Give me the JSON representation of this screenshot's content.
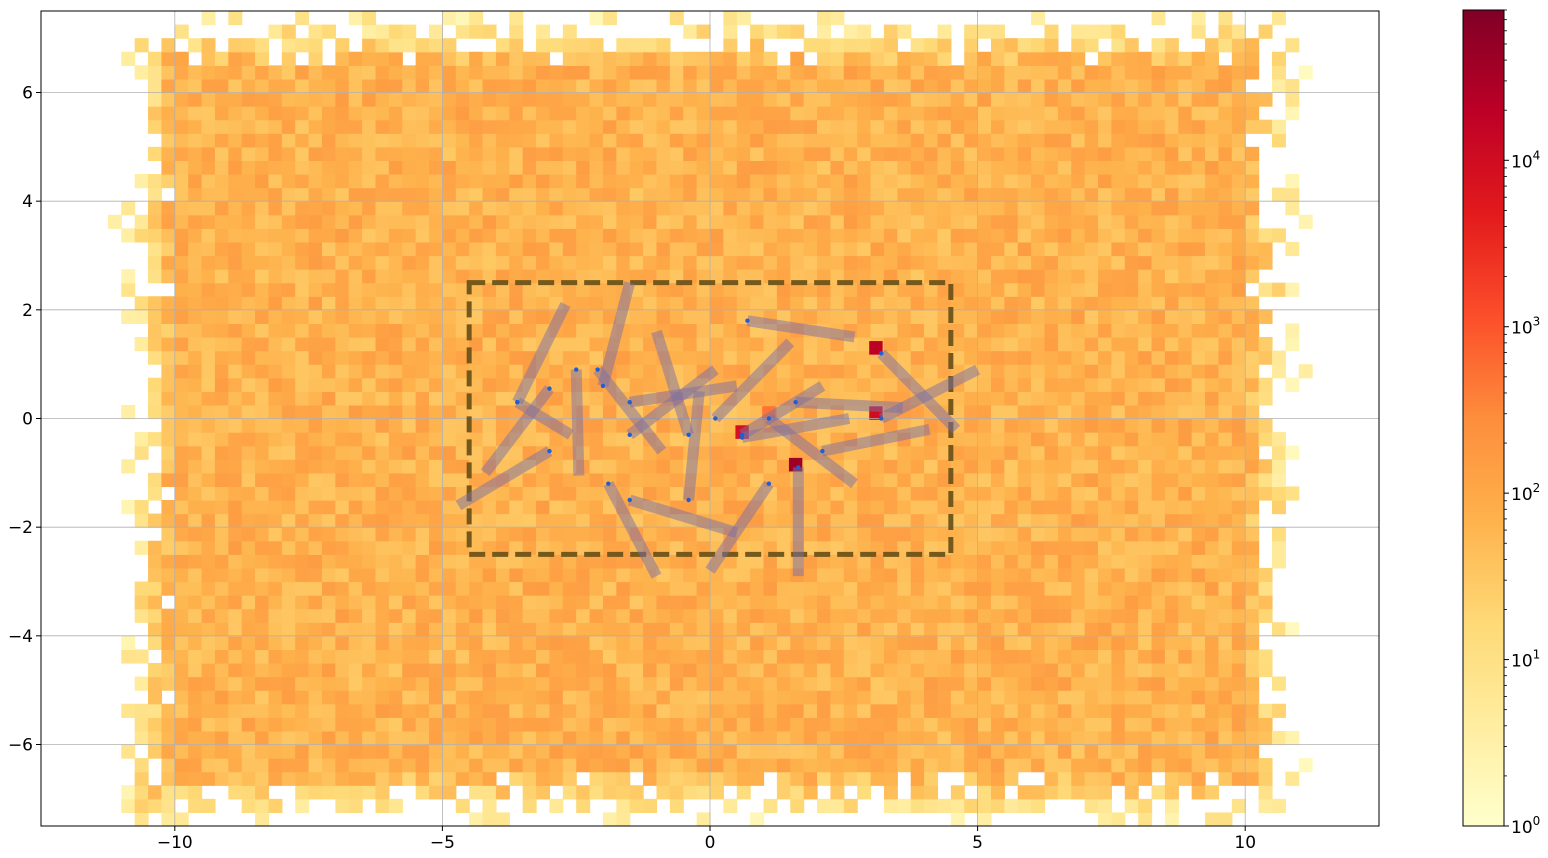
{
  "chart_data": {
    "type": "heatmap",
    "title": "",
    "xlabel": "",
    "ylabel": "",
    "xlim": [
      -12.5,
      12.5
    ],
    "ylim": [
      -7.5,
      7.5
    ],
    "grid": true,
    "x_ticks": [
      {
        "value": -10,
        "label": "−10"
      },
      {
        "value": -5,
        "label": "−5"
      },
      {
        "value": 0,
        "label": "0"
      },
      {
        "value": 5,
        "label": "5"
      },
      {
        "value": 10,
        "label": "10"
      }
    ],
    "y_ticks": [
      {
        "value": 6,
        "label": "6"
      },
      {
        "value": 4,
        "label": "4"
      },
      {
        "value": 2,
        "label": "2"
      },
      {
        "value": 0,
        "label": "0"
      },
      {
        "value": -2,
        "label": "−2"
      },
      {
        "value": -4,
        "label": "−4"
      },
      {
        "value": -6,
        "label": "−6"
      }
    ],
    "colorbar": {
      "scale": "log",
      "colormap": "YlOrRd",
      "range": [
        1,
        80000
      ],
      "colors": [
        "#ffffcc",
        "#ffeda0",
        "#fed976",
        "#feb24c",
        "#fd8d3c",
        "#fc4e2a",
        "#e31a1c",
        "#bd0026",
        "#800026"
      ],
      "ticks": [
        {
          "value": 1,
          "base": "10",
          "exp": "0"
        },
        {
          "value": 10,
          "base": "10",
          "exp": "1"
        },
        {
          "value": 100,
          "base": "10",
          "exp": "2"
        },
        {
          "value": 1000,
          "base": "10",
          "exp": "3"
        },
        {
          "value": 10000,
          "base": "10",
          "exp": "4"
        }
      ]
    },
    "heatmap": {
      "bin_size": 0.25,
      "core_region": {
        "x": [
          -10,
          10
        ],
        "y": [
          -6.5,
          6.5
        ]
      },
      "typical_count": 70,
      "hot_cells": [
        {
          "x": 3.1,
          "y": 1.3,
          "count": 20000
        },
        {
          "x": 3.1,
          "y": 0.1,
          "count": 10000
        },
        {
          "x": 1.1,
          "y": 0.1,
          "count": 500
        },
        {
          "x": 0.6,
          "y": -0.25,
          "count": 8000
        },
        {
          "x": 1.6,
          "y": -0.85,
          "count": 40000
        }
      ]
    },
    "region_box": {
      "x": [
        -4.5,
        4.5
      ],
      "y": [
        -2.5,
        2.5
      ],
      "color": "#6e5318",
      "style": "dashed"
    },
    "segments": [
      {
        "x1": -3.6,
        "y1": 0.3,
        "x2": -2.6,
        "y2": -0.3
      },
      {
        "x1": -3.0,
        "y1": 0.55,
        "x2": -4.2,
        "y2": -1.0
      },
      {
        "x1": -3.0,
        "y1": -0.6,
        "x2": -4.7,
        "y2": -1.6
      },
      {
        "x1": -3.6,
        "y1": 0.3,
        "x2": -2.7,
        "y2": 2.1
      },
      {
        "x1": -2.5,
        "y1": 0.9,
        "x2": -2.45,
        "y2": -1.05
      },
      {
        "x1": -2.0,
        "y1": 0.6,
        "x2": -1.5,
        "y2": 2.5
      },
      {
        "x1": -2.1,
        "y1": 0.9,
        "x2": -0.9,
        "y2": -0.6
      },
      {
        "x1": -1.5,
        "y1": 0.3,
        "x2": 0.5,
        "y2": 0.6
      },
      {
        "x1": -1.5,
        "y1": -0.3,
        "x2": 0.1,
        "y2": 0.9
      },
      {
        "x1": -0.4,
        "y1": -0.3,
        "x2": -1.0,
        "y2": 1.6
      },
      {
        "x1": -0.4,
        "y1": -1.5,
        "x2": -0.2,
        "y2": 0.5
      },
      {
        "x1": 0.1,
        "y1": 0.0,
        "x2": 1.5,
        "y2": 1.4
      },
      {
        "x1": 0.7,
        "y1": 1.8,
        "x2": 2.7,
        "y2": 1.5
      },
      {
        "x1": 0.6,
        "y1": -0.3,
        "x2": 2.1,
        "y2": 0.6
      },
      {
        "x1": 0.6,
        "y1": -0.35,
        "x2": 2.6,
        "y2": 0.0
      },
      {
        "x1": 1.1,
        "y1": 0.0,
        "x2": 2.7,
        "y2": -1.2
      },
      {
        "x1": 1.6,
        "y1": 0.3,
        "x2": 3.6,
        "y2": 0.2
      },
      {
        "x1": 3.2,
        "y1": 1.2,
        "x2": 4.6,
        "y2": -0.2
      },
      {
        "x1": 3.2,
        "y1": 0.0,
        "x2": 5.0,
        "y2": 0.9
      },
      {
        "x1": 2.1,
        "y1": -0.6,
        "x2": 4.1,
        "y2": -0.2
      },
      {
        "x1": -1.9,
        "y1": -1.2,
        "x2": -1.0,
        "y2": -2.9
      },
      {
        "x1": -1.5,
        "y1": -1.5,
        "x2": 0.5,
        "y2": -2.1
      },
      {
        "x1": 1.1,
        "y1": -1.2,
        "x2": 0.0,
        "y2": -2.8
      },
      {
        "x1": 1.65,
        "y1": -0.9,
        "x2": 1.65,
        "y2": -2.9
      }
    ]
  }
}
